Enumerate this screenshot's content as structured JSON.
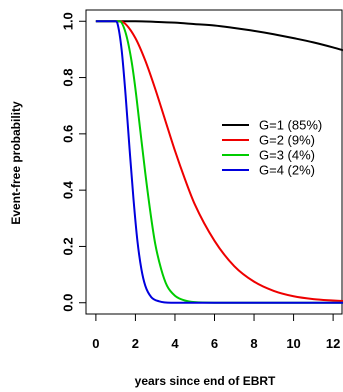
{
  "chart_data": {
    "type": "line",
    "xlabel": "years since end of EBRT",
    "ylabel": "Event-free probability",
    "xlim": [
      -0.5,
      12.5
    ],
    "ylim": [
      -0.04,
      1.04
    ],
    "x_ticks": [
      0,
      2,
      4,
      6,
      8,
      10,
      12
    ],
    "y_ticks": [
      0.0,
      0.2,
      0.4,
      0.6,
      0.8,
      1.0
    ],
    "x_tick_labels": [
      "0",
      "2",
      "4",
      "6",
      "8",
      "10",
      "12"
    ],
    "y_tick_labels": [
      "0.0",
      "0.2",
      "0.4",
      "0.6",
      "0.8",
      "1.0"
    ],
    "grid": false,
    "legend_position": "right",
    "series": [
      {
        "name": "G=1 (85%)",
        "color": "#000000",
        "x": [
          0,
          1,
          2,
          3,
          4,
          5,
          6,
          7,
          8,
          9,
          10,
          11,
          12,
          12.5
        ],
        "y": [
          1.0,
          1.0,
          1.0,
          0.998,
          0.995,
          0.99,
          0.985,
          0.976,
          0.966,
          0.954,
          0.94,
          0.925,
          0.907,
          0.897
        ]
      },
      {
        "name": "G=2 (9%)",
        "color": "#ee0000",
        "x": [
          0,
          1,
          1.2,
          1.5,
          2,
          2.5,
          3,
          3.5,
          4,
          4.5,
          5,
          6,
          7,
          8,
          9,
          10,
          11,
          12,
          12.5
        ],
        "y": [
          1.0,
          1.0,
          1.0,
          0.99,
          0.94,
          0.86,
          0.76,
          0.65,
          0.54,
          0.44,
          0.35,
          0.22,
          0.13,
          0.075,
          0.042,
          0.023,
          0.013,
          0.008,
          0.006
        ]
      },
      {
        "name": "G=3 (4%)",
        "color": "#00cc00",
        "x": [
          0,
          1,
          1.2,
          1.5,
          1.8,
          2,
          2.2,
          2.5,
          2.8,
          3,
          3.3,
          3.6,
          4,
          4.5,
          5,
          6,
          8,
          10,
          12.5
        ],
        "y": [
          1.0,
          1.0,
          1.0,
          0.96,
          0.86,
          0.76,
          0.64,
          0.46,
          0.3,
          0.21,
          0.12,
          0.06,
          0.025,
          0.008,
          0.002,
          0.0,
          0.0,
          0.0,
          0.0
        ]
      },
      {
        "name": "G=4 (2%)",
        "color": "#0000dd",
        "x": [
          0,
          1,
          1.1,
          1.3,
          1.5,
          1.7,
          1.9,
          2.1,
          2.3,
          2.5,
          2.8,
          3.2,
          3.8,
          5,
          7,
          10,
          12.5
        ],
        "y": [
          1.0,
          1.0,
          0.99,
          0.9,
          0.74,
          0.55,
          0.37,
          0.22,
          0.12,
          0.06,
          0.02,
          0.005,
          0.0,
          0.0,
          0.0,
          0.0,
          0.0
        ]
      }
    ]
  }
}
